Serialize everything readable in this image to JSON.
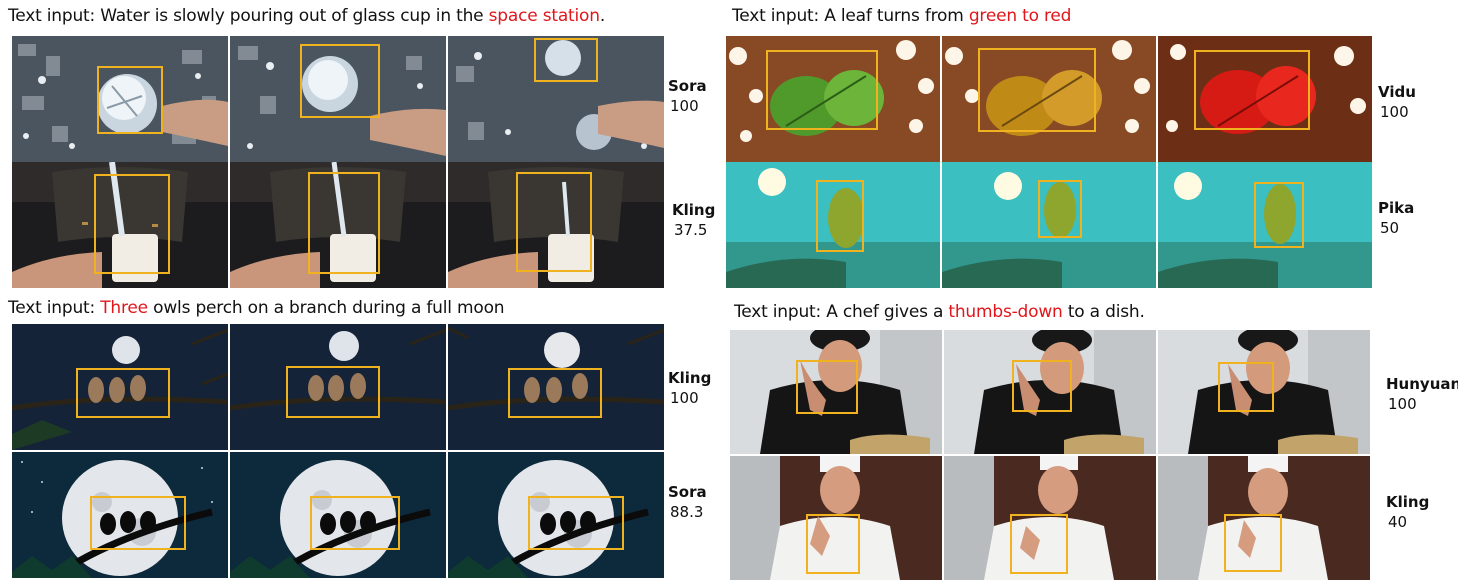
{
  "panels": {
    "water": {
      "caption_prefix": "Text input: Water is slowly pouring out of glass cup in the ",
      "caption_highlight": "space station",
      "caption_suffix": ".",
      "rows": [
        {
          "model": "Sora",
          "score": "100"
        },
        {
          "model": "Kling",
          "score": "37.5"
        }
      ]
    },
    "leaf": {
      "caption_prefix": "Text input: A leaf turns from ",
      "caption_highlight": "green to red",
      "caption_suffix": "",
      "rows": [
        {
          "model": "Vidu",
          "score": "100"
        },
        {
          "model": "Pika",
          "score": "50"
        }
      ]
    },
    "owls": {
      "caption_prefix": "Text input: ",
      "caption_highlight": "Three",
      "caption_suffix": " owls perch on a branch during a full moon",
      "rows": [
        {
          "model": "Kling",
          "score": "100"
        },
        {
          "model": "Sora",
          "score": "88.3"
        }
      ]
    },
    "chef": {
      "caption_prefix": "Text input: A chef gives a ",
      "caption_highlight": "thumbs-down",
      "caption_suffix": " to a dish.",
      "rows": [
        {
          "model": "Hunyuan",
          "score": "100"
        },
        {
          "model": "Kling",
          "score": "40"
        }
      ]
    }
  },
  "colors": {
    "highlight": "#e0161b",
    "bbox": "#f0b21e"
  }
}
